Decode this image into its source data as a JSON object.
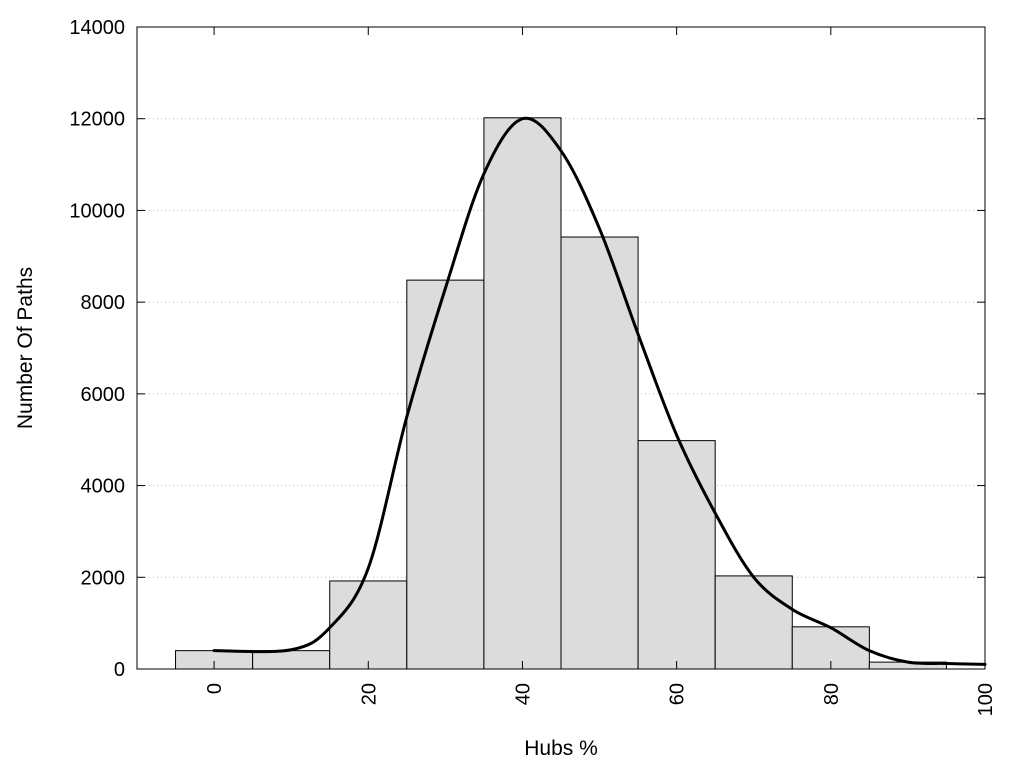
{
  "chart_data": {
    "type": "bar",
    "title": "",
    "xlabel": "Hubs %",
    "ylabel": "Number Of Paths",
    "xlim": [
      -10,
      100
    ],
    "ylim": [
      0,
      14000
    ],
    "grid": true,
    "x_ticks": [
      "0",
      "20",
      "40",
      "60",
      "80",
      "100"
    ],
    "y_ticks": [
      "0",
      "2000",
      "4000",
      "6000",
      "8000",
      "10000",
      "12000",
      "14000"
    ],
    "bin_width": 10,
    "bins": [
      {
        "center": 0,
        "value": 400
      },
      {
        "center": 10,
        "value": 400
      },
      {
        "center": 20,
        "value": 1920
      },
      {
        "center": 30,
        "value": 8480
      },
      {
        "center": 40,
        "value": 12020
      },
      {
        "center": 50,
        "value": 9420
      },
      {
        "center": 60,
        "value": 4980
      },
      {
        "center": 70,
        "value": 2030
      },
      {
        "center": 80,
        "value": 920
      },
      {
        "center": 90,
        "value": 150
      }
    ],
    "curve": {
      "x": [
        0,
        10,
        15,
        20,
        25,
        30,
        35,
        40,
        45,
        50,
        55,
        60,
        65,
        70,
        75,
        80,
        85,
        90,
        95,
        100
      ],
      "y": [
        400,
        420,
        900,
        2200,
        5500,
        8300,
        10800,
        12000,
        11300,
        9600,
        7300,
        5100,
        3400,
        2000,
        1300,
        900,
        400,
        150,
        120,
        100
      ]
    },
    "colors": {
      "bar_fill": "#dcdcdc",
      "bar_edge": "#000000",
      "curve": "#000000"
    }
  }
}
